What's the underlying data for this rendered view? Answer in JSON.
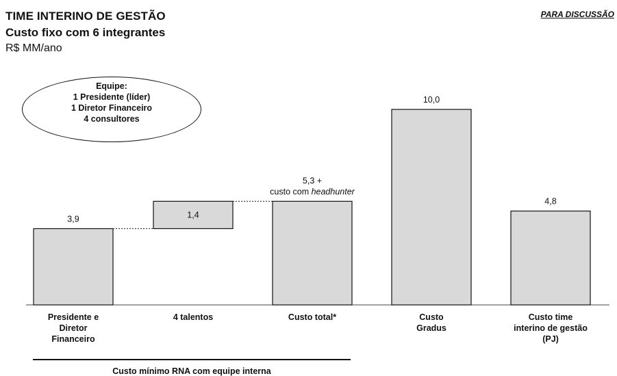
{
  "header": {
    "title": "TIME INTERINO DE GESTÃO",
    "subtitle": "Custo fixo com 6 integrantes",
    "unit": "R$ MM/ano",
    "tag": "PARA DISCUSSÃO"
  },
  "callout": {
    "lines": [
      "Equipe:",
      "1 Presidente (líder)",
      "1 Diretor Financeiro",
      "4 consultores"
    ]
  },
  "footer": {
    "label": "Custo mínimo RNA com equipe interna"
  },
  "chart_data": {
    "type": "bar",
    "subtype": "waterfall",
    "categories": [
      [
        "Presidente e",
        "Diretor",
        "Financeiro"
      ],
      [
        "4 talentos"
      ],
      [
        "Custo total*"
      ],
      [
        "Custo",
        "Gradus"
      ],
      [
        "Custo time",
        "interino de gestão",
        "(PJ)"
      ]
    ],
    "bars": [
      {
        "base": 0,
        "value": 3.9,
        "label": [
          "3,9"
        ],
        "label_position": "above"
      },
      {
        "base": 3.9,
        "value": 1.4,
        "label": [
          "1,4"
        ],
        "label_position": "inside"
      },
      {
        "base": 0,
        "value": 5.3,
        "label": [
          "5,3 +",
          "custo com headhunter"
        ],
        "label_position": "above"
      },
      {
        "base": 0,
        "value": 10.0,
        "label": [
          "10,0"
        ],
        "label_position": "above"
      },
      {
        "base": 0,
        "value": 4.8,
        "label": [
          "4,8"
        ],
        "label_position": "above"
      }
    ],
    "connectors": [
      [
        0,
        1
      ],
      [
        1,
        2
      ]
    ],
    "ylim": [
      0,
      10
    ],
    "grid": false,
    "bar_color": "#d9d9d9",
    "edge_color": "#111111"
  }
}
